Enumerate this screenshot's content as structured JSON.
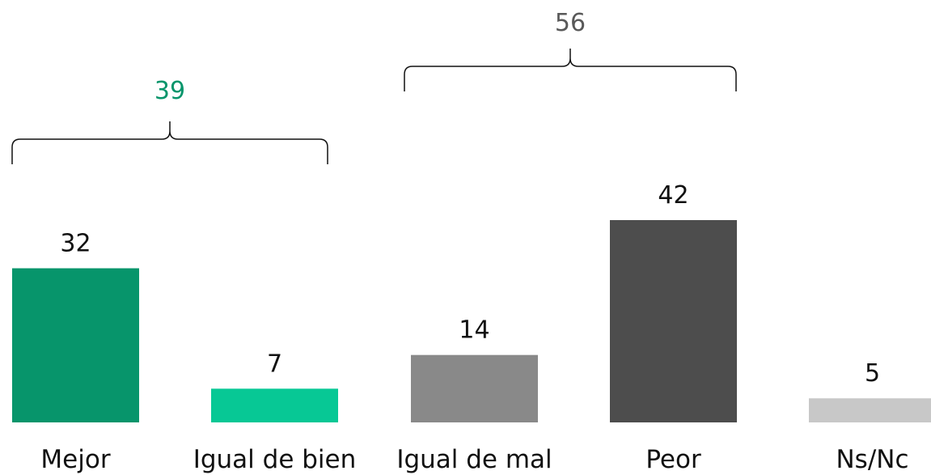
{
  "chart_data": {
    "type": "bar",
    "categories": [
      "Mejor",
      "Igual de bien",
      "Igual de mal",
      "Peor",
      "Ns/Nc"
    ],
    "values": [
      32,
      7,
      14,
      42,
      5
    ],
    "colors": [
      "#07956b",
      "#07c895",
      "#898989",
      "#4d4d4d",
      "#c8c8c8"
    ],
    "ylim": [
      0,
      42
    ],
    "grid": false,
    "legend": "none",
    "groups": [
      {
        "total": "39",
        "from": 0,
        "to": 1,
        "color": "#07956b"
      },
      {
        "total": "56",
        "from": 2,
        "to": 3,
        "color": "#595959"
      }
    ]
  }
}
